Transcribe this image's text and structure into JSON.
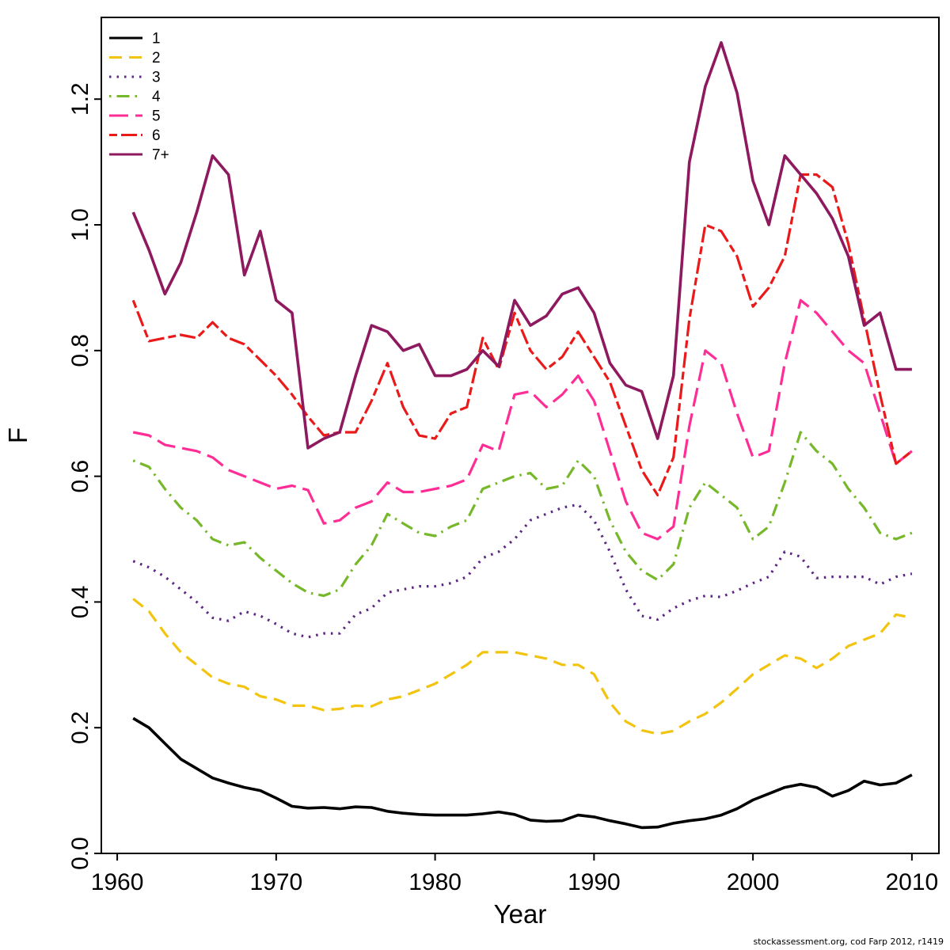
{
  "footer": "stockassessment.org, cod Farp 2012, r1419",
  "chart_data": {
    "type": "line",
    "title": "",
    "xlabel": "Year",
    "ylabel": "F",
    "xlim": [
      1959,
      2011.7
    ],
    "ylim": [
      0,
      1.33
    ],
    "x_ticks": [
      1960,
      1970,
      1980,
      1990,
      2000,
      2010
    ],
    "y_ticks": [
      0.0,
      0.2,
      0.4,
      0.6,
      0.8,
      1.0,
      1.2
    ],
    "grid": false,
    "legend_position": "top-left",
    "x": [
      1961,
      1962,
      1963,
      1964,
      1965,
      1966,
      1967,
      1968,
      1969,
      1970,
      1971,
      1972,
      1973,
      1974,
      1975,
      1976,
      1977,
      1978,
      1979,
      1980,
      1981,
      1982,
      1983,
      1984,
      1985,
      1986,
      1987,
      1988,
      1989,
      1990,
      1991,
      1992,
      1993,
      1994,
      1995,
      1996,
      1997,
      1998,
      1999,
      2000,
      2001,
      2002,
      2003,
      2004,
      2005,
      2006,
      2007,
      2008,
      2009,
      2010
    ],
    "series": [
      {
        "name": "1",
        "color": "#000000",
        "style": "solid",
        "values": [
          0.215,
          0.2,
          0.175,
          0.15,
          0.135,
          0.12,
          0.112,
          0.105,
          0.1,
          0.088,
          0.075,
          0.072,
          0.073,
          0.071,
          0.074,
          0.073,
          0.067,
          0.064,
          0.062,
          0.061,
          0.061,
          0.061,
          0.063,
          0.066,
          0.062,
          0.053,
          0.051,
          0.052,
          0.061,
          0.058,
          0.052,
          0.047,
          0.041,
          0.042,
          0.048,
          0.052,
          0.055,
          0.061,
          0.071,
          0.085,
          0.095,
          0.105,
          0.11,
          0.105,
          0.091,
          0.1,
          0.115,
          0.109,
          0.112,
          0.125
        ]
      },
      {
        "name": "2",
        "color": "#F2C410",
        "style": "dashed",
        "values": [
          0.405,
          0.385,
          0.35,
          0.32,
          0.3,
          0.28,
          0.27,
          0.265,
          0.25,
          0.245,
          0.235,
          0.235,
          0.228,
          0.23,
          0.235,
          0.234,
          0.245,
          0.25,
          0.26,
          0.27,
          0.285,
          0.3,
          0.32,
          0.32,
          0.32,
          0.315,
          0.31,
          0.3,
          0.3,
          0.285,
          0.24,
          0.21,
          0.196,
          0.19,
          0.195,
          0.21,
          0.222,
          0.24,
          0.262,
          0.285,
          0.3,
          0.315,
          0.31,
          0.295,
          0.31,
          0.33,
          0.34,
          0.35,
          0.38,
          0.375
        ]
      },
      {
        "name": "3",
        "color": "#5C2483",
        "style": "dotted",
        "values": [
          0.465,
          0.455,
          0.44,
          0.42,
          0.4,
          0.375,
          0.37,
          0.385,
          0.378,
          0.365,
          0.35,
          0.344,
          0.35,
          0.35,
          0.38,
          0.39,
          0.415,
          0.42,
          0.425,
          0.425,
          0.43,
          0.44,
          0.47,
          0.48,
          0.5,
          0.53,
          0.54,
          0.55,
          0.555,
          0.53,
          0.48,
          0.42,
          0.378,
          0.372,
          0.39,
          0.402,
          0.41,
          0.408,
          0.418,
          0.43,
          0.44,
          0.48,
          0.472,
          0.438,
          0.44,
          0.44,
          0.44,
          0.428,
          0.44,
          0.445
        ]
      },
      {
        "name": "4",
        "color": "#76B82A",
        "style": "dotdash",
        "values": [
          0.625,
          0.615,
          0.58,
          0.55,
          0.53,
          0.5,
          0.49,
          0.495,
          0.47,
          0.45,
          0.43,
          0.415,
          0.41,
          0.42,
          0.46,
          0.49,
          0.54,
          0.525,
          0.51,
          0.505,
          0.52,
          0.53,
          0.58,
          0.59,
          0.6,
          0.605,
          0.58,
          0.585,
          0.625,
          0.6,
          0.53,
          0.48,
          0.45,
          0.435,
          0.46,
          0.55,
          0.59,
          0.57,
          0.55,
          0.5,
          0.52,
          0.59,
          0.67,
          0.64,
          0.62,
          0.58,
          0.55,
          0.51,
          0.5,
          0.51
        ]
      },
      {
        "name": "5",
        "color": "#FF2D96",
        "style": "longdash",
        "values": [
          0.67,
          0.665,
          0.65,
          0.645,
          0.64,
          0.63,
          0.61,
          0.6,
          0.59,
          0.58,
          0.585,
          0.578,
          0.525,
          0.53,
          0.55,
          0.56,
          0.59,
          0.575,
          0.575,
          0.58,
          0.585,
          0.595,
          0.65,
          0.64,
          0.73,
          0.735,
          0.71,
          0.73,
          0.76,
          0.72,
          0.64,
          0.56,
          0.51,
          0.5,
          0.52,
          0.68,
          0.8,
          0.78,
          0.7,
          0.63,
          0.64,
          0.78,
          0.88,
          0.86,
          0.83,
          0.8,
          0.78,
          0.7,
          0.62,
          0.64
        ]
      },
      {
        "name": "6",
        "color": "#EB1A1A",
        "style": "twodash",
        "values": [
          0.88,
          0.815,
          0.82,
          0.825,
          0.82,
          0.845,
          0.82,
          0.81,
          0.785,
          0.76,
          0.73,
          0.695,
          0.665,
          0.67,
          0.67,
          0.72,
          0.78,
          0.71,
          0.665,
          0.66,
          0.7,
          0.71,
          0.82,
          0.77,
          0.86,
          0.8,
          0.77,
          0.79,
          0.83,
          0.79,
          0.75,
          0.68,
          0.61,
          0.57,
          0.63,
          0.85,
          1.0,
          0.99,
          0.95,
          0.87,
          0.9,
          0.95,
          1.08,
          1.08,
          1.06,
          0.97,
          0.85,
          0.73,
          0.62,
          0.64
        ]
      },
      {
        "name": "7+",
        "color": "#8E195F",
        "style": "solid",
        "values": [
          1.02,
          0.96,
          0.89,
          0.94,
          1.02,
          1.11,
          1.08,
          0.92,
          0.99,
          0.88,
          0.86,
          0.645,
          0.66,
          0.67,
          0.76,
          0.84,
          0.83,
          0.8,
          0.81,
          0.76,
          0.76,
          0.77,
          0.8,
          0.775,
          0.88,
          0.84,
          0.855,
          0.89,
          0.9,
          0.86,
          0.78,
          0.745,
          0.735,
          0.66,
          0.76,
          1.1,
          1.22,
          1.29,
          1.21,
          1.07,
          1.0,
          1.11,
          1.08,
          1.05,
          1.01,
          0.95,
          0.84,
          0.86,
          0.77,
          0.77
        ]
      }
    ]
  }
}
